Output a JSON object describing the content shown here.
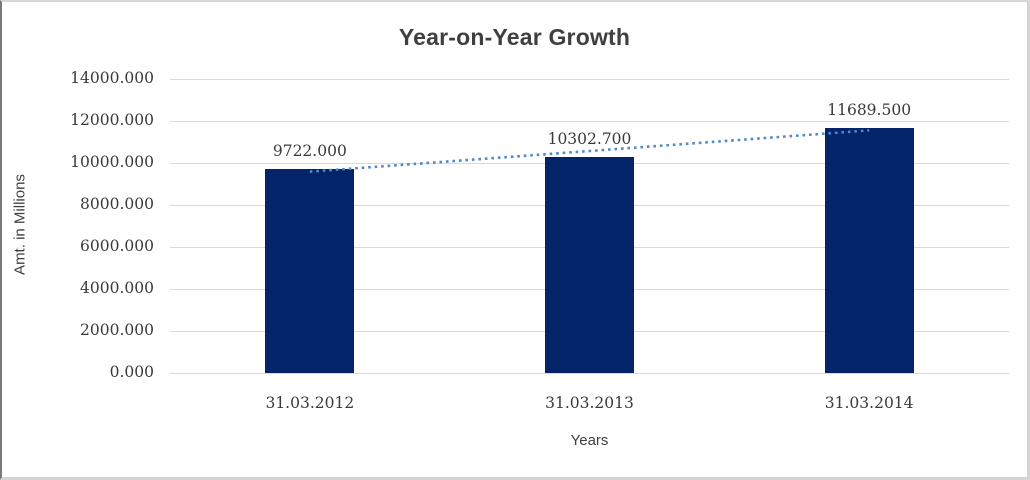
{
  "chart_data": {
    "type": "bar",
    "title": "Year-on-Year Growth",
    "xlabel": "Years",
    "ylabel": "Amt. in Millions",
    "categories": [
      "31.03.2012",
      "31.03.2013",
      "31.03.2014"
    ],
    "values": [
      9722.0,
      10302.7,
      11689.5
    ],
    "data_labels": [
      "9722.000",
      "10302.700",
      "11689.500"
    ],
    "yticks_labels": [
      "0.000",
      "2000.000",
      "4000.000",
      "6000.000",
      "8000.000",
      "10000.000",
      "12000.000",
      "14000.000"
    ],
    "yticks_values": [
      0,
      2000,
      4000,
      6000,
      8000,
      10000,
      12000,
      14000
    ],
    "ylim": [
      0,
      14000
    ],
    "grid": "horizontal",
    "legend": "none",
    "trendline": {
      "type": "linear",
      "style": "dotted"
    },
    "colors": {
      "bar": "#032468",
      "trendline": "#4e8ac8",
      "gridline": "#d9d9d9",
      "text": "#3f3f3f",
      "background": "#ffffff"
    }
  }
}
